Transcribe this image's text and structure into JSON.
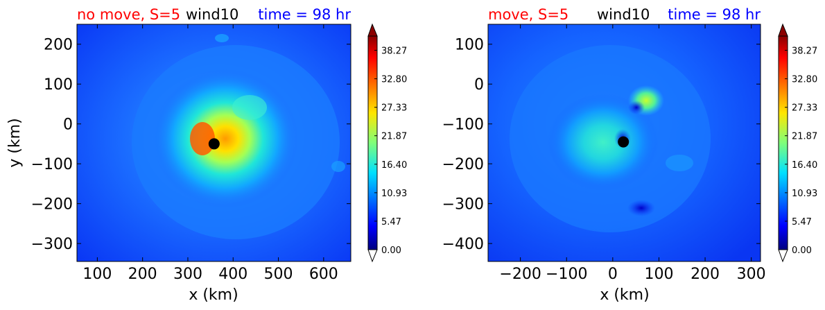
{
  "chart_data": [
    {
      "type": "heatmap",
      "variable": "wind10",
      "title_left": "no move, S=5",
      "title_center": "wind10",
      "title_right": "time = 98 hr",
      "title_colors": {
        "left": "#ff0000",
        "center": "#000000",
        "right": "#0000ff"
      },
      "xlabel": "x (km)",
      "ylabel": "y (km)",
      "xlim": [
        55,
        660
      ],
      "ylim": [
        -345,
        250
      ],
      "xticks": [
        100,
        200,
        300,
        400,
        500,
        600
      ],
      "yticks": [
        200,
        100,
        0,
        -100,
        -200,
        -300
      ],
      "tick_labels_x": [
        "100",
        "200",
        "300",
        "400",
        "500",
        "600"
      ],
      "tick_labels_y": [
        "200",
        "100",
        "0",
        "−100",
        "−200",
        "−300"
      ],
      "center_marker": {
        "x": 358,
        "y": -50
      },
      "colorbar": {
        "levels": [
          "38.27",
          "32.80",
          "27.33",
          "21.87",
          "16.40",
          "10.93",
          "5.47",
          "0.00"
        ],
        "min": 0,
        "max": 41,
        "extend": "both"
      }
    },
    {
      "type": "heatmap",
      "variable": "wind10",
      "title_left": "move, S=5",
      "title_center": "wind10",
      "title_right": "time = 98 hr",
      "title_colors": {
        "left": "#ff0000",
        "center": "#000000",
        "right": "#0000ff"
      },
      "xlabel": "x (km)",
      "ylabel": "",
      "xlim": [
        -270,
        320
      ],
      "ylim": [
        -445,
        150
      ],
      "xticks": [
        -200,
        -100,
        0,
        100,
        200,
        300
      ],
      "yticks": [
        100,
        0,
        -100,
        -200,
        -300,
        -400
      ],
      "tick_labels_x": [
        "−200",
        "−100",
        "0",
        "100",
        "200",
        "300"
      ],
      "tick_labels_y": [
        "100",
        "0",
        "−100",
        "−200",
        "−300",
        "−400"
      ],
      "center_marker": {
        "x": 23,
        "y": -145
      },
      "colorbar": {
        "levels": [
          "38.27",
          "32.80",
          "27.33",
          "21.87",
          "16.40",
          "10.93",
          "5.47",
          "0.00"
        ],
        "min": 0,
        "max": 41,
        "extend": "both"
      }
    }
  ]
}
